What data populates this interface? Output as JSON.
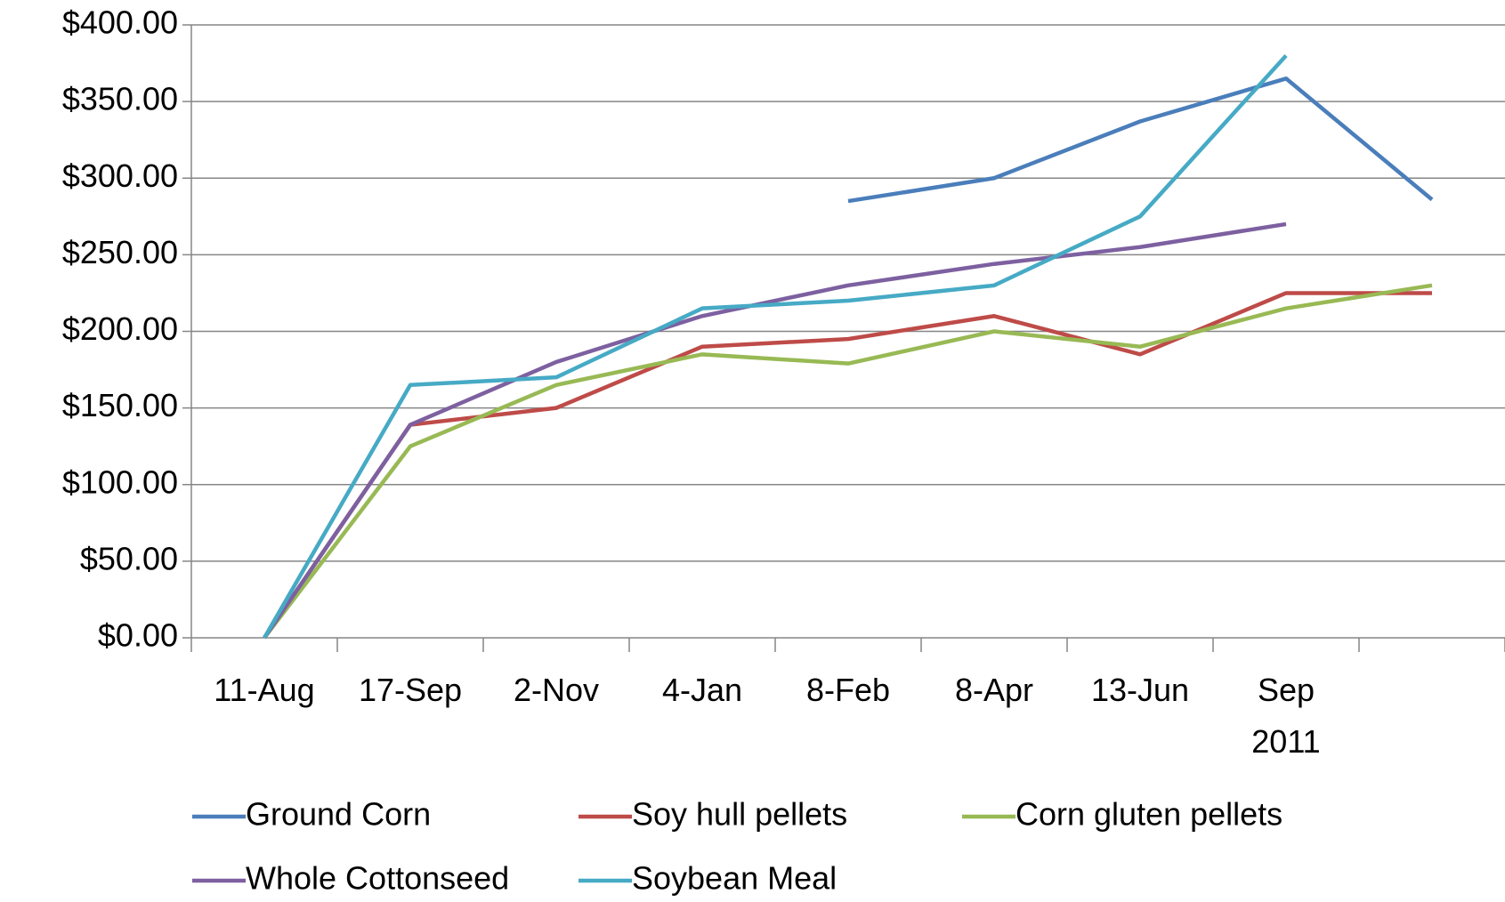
{
  "chart_data": {
    "type": "line",
    "categories": [
      "11-Aug",
      "17-Sep",
      "2-Nov",
      "4-Jan",
      "8-Feb",
      "8-Apr",
      "13-Jun",
      "Sep 2011",
      null
    ],
    "series": [
      {
        "name": "Ground Corn",
        "color": "#4a7ebb",
        "values": [
          null,
          null,
          null,
          null,
          285,
          300,
          337,
          365,
          286
        ]
      },
      {
        "name": "Soy hull pellets",
        "color": "#be4b48",
        "values": [
          0,
          139,
          150,
          190,
          195,
          210,
          185,
          225,
          225
        ]
      },
      {
        "name": "Corn gluten pellets",
        "color": "#98b954",
        "values": [
          0,
          125,
          165,
          185,
          179,
          200,
          190,
          215,
          230
        ]
      },
      {
        "name": "Whole Cottonseed",
        "color": "#7d60a0",
        "values": [
          0,
          139,
          180,
          210,
          230,
          244,
          255,
          270,
          null
        ]
      },
      {
        "name": "Soybean Meal",
        "color": "#46aac5",
        "values": [
          0,
          165,
          170,
          215,
          220,
          230,
          275,
          380,
          null
        ]
      }
    ],
    "ylim": [
      0,
      400
    ],
    "yticks": [
      {
        "value": 0,
        "label": "$0.00"
      },
      {
        "value": 50,
        "label": "$50.00"
      },
      {
        "value": 100,
        "label": "$100.00"
      },
      {
        "value": 150,
        "label": "$150.00"
      },
      {
        "value": 200,
        "label": "$200.00"
      },
      {
        "value": 250,
        "label": "$250.00"
      },
      {
        "value": 300,
        "label": "$300.00"
      },
      {
        "value": 350,
        "label": "$350.00"
      },
      {
        "value": 400,
        "label": "$400.00"
      }
    ],
    "grid": true,
    "legend": "bottom"
  }
}
